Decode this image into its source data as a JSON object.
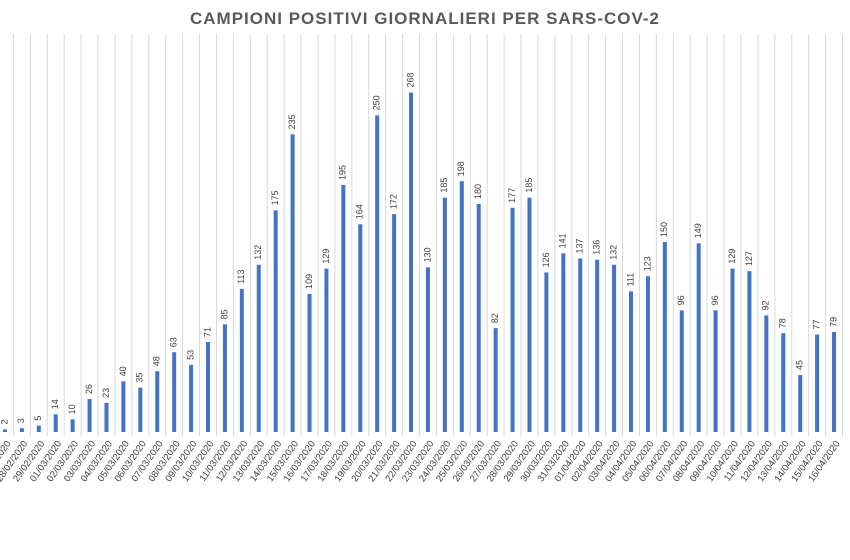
{
  "chart_data": {
    "type": "bar",
    "title": "CAMPIONI POSITIVI GIORNALIERI PER SARS-COV-2",
    "categories": [
      "27/02/2020",
      "28/02/2020",
      "29/02/2020",
      "01/03/2020",
      "02/03/2020",
      "03/03/2020",
      "04/03/2020",
      "05/03/2020",
      "06/03/2020",
      "07/03/2020",
      "08/03/2020",
      "09/03/2020",
      "10/03/2020",
      "11/03/2020",
      "12/03/2020",
      "13/03/2020",
      "14/03/2020",
      "15/03/2020",
      "16/03/2020",
      "17/03/2020",
      "18/03/2020",
      "19/03/2020",
      "20/03/2020",
      "21/03/2020",
      "22/03/2020",
      "23/03/2020",
      "24/03/2020",
      "25/03/2020",
      "26/03/2020",
      "27/03/2020",
      "28/03/2020",
      "29/03/2020",
      "30/03/2020",
      "31/03/2020",
      "01/04/2020",
      "02/04/2020",
      "03/04/2020",
      "04/04/2020",
      "05/04/2020",
      "06/04/2020",
      "07/04/2020",
      "08/04/2020",
      "09/04/2020",
      "10/04/2020",
      "11/04/2020",
      "12/04/2020",
      "13/04/2020",
      "14/04/2020",
      "15/04/2020",
      "16/04/2020"
    ],
    "values": [
      2,
      3,
      5,
      14,
      10,
      26,
      23,
      40,
      35,
      48,
      63,
      53,
      71,
      85,
      113,
      132,
      175,
      235,
      109,
      129,
      195,
      164,
      250,
      172,
      268,
      130,
      185,
      198,
      180,
      82,
      177,
      185,
      126,
      141,
      137,
      136,
      132,
      111,
      123,
      150,
      96,
      149,
      96,
      129,
      127,
      92,
      78,
      45,
      77,
      79
    ],
    "color": "#4472c4",
    "ylim": [
      0,
      300
    ],
    "grid": true
  }
}
